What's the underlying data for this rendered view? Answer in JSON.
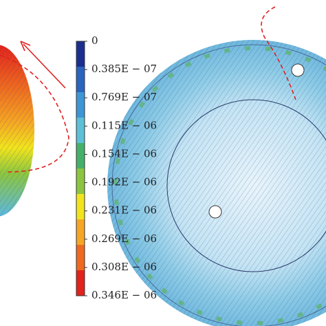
{
  "colorbar": {
    "labels": [
      "0",
      "0.385E − 07",
      "0.769E − 07",
      "0.115E − 06",
      "0.154E − 06",
      "0.192E − 06",
      "0.231E − 06",
      "0.269E − 06",
      "0.308E − 06",
      "0.346E − 06"
    ],
    "colors": [
      "#1a2f8f",
      "#2a64c0",
      "#3d96d6",
      "#5cc0d8",
      "#45b06a",
      "#8cc640",
      "#f2e41c",
      "#f6a623",
      "#ef6a1f",
      "#e3221c"
    ]
  }
}
